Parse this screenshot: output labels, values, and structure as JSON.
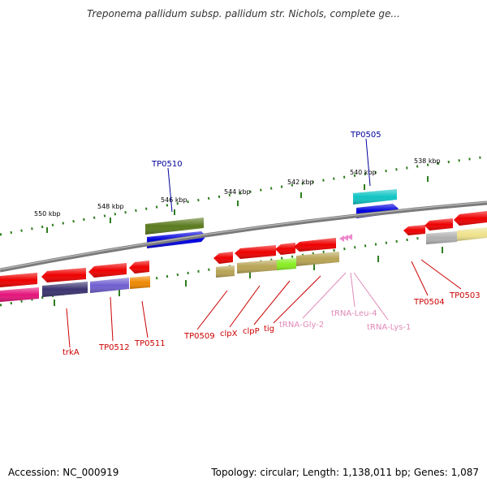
{
  "title": "Treponema pallidum subsp. pallidum str. Nichols, complete ge...",
  "footer": {
    "accession": "Accession: NC_000919",
    "summary": "Topology: circular; Length: 1,138,011 bp; Genes: 1,087"
  },
  "colors": {
    "backbone": "#7f7f7f",
    "label_red": "#cc0000",
    "label_pink": "#e08ab8",
    "label_blue": "#000099",
    "tick": "#2e7d1e"
  },
  "scale_labels": [
    {
      "name": "550-kbp",
      "text": "550 kbp"
    },
    {
      "name": "548-kbp",
      "text": "548 kbp"
    },
    {
      "name": "546-kbp",
      "text": "546 kbp"
    },
    {
      "name": "544-kbp",
      "text": "544 kbp"
    },
    {
      "name": "542-kbp",
      "text": "542 kbp"
    },
    {
      "name": "540-kbp",
      "text": "540 kbp"
    },
    {
      "name": "538-kbp",
      "text": "538 kbp"
    }
  ],
  "gene_labels": {
    "TP0510": "TP0510",
    "TP0505": "TP0505",
    "trkA": "trkA",
    "TP0512": "TP0512",
    "TP0511": "TP0511",
    "TP0509": "TP0509",
    "clpX": "clpX",
    "clpP": "clpP",
    "tig": "tig",
    "tRNA_Gly_2": "tRNA-Gly-2",
    "tRNA_Leu_4": "tRNA-Leu-4",
    "tRNA_Lys_1": "tRNA-Lys-1",
    "TP0504": "TP0504",
    "TP0503": "TP0503"
  }
}
